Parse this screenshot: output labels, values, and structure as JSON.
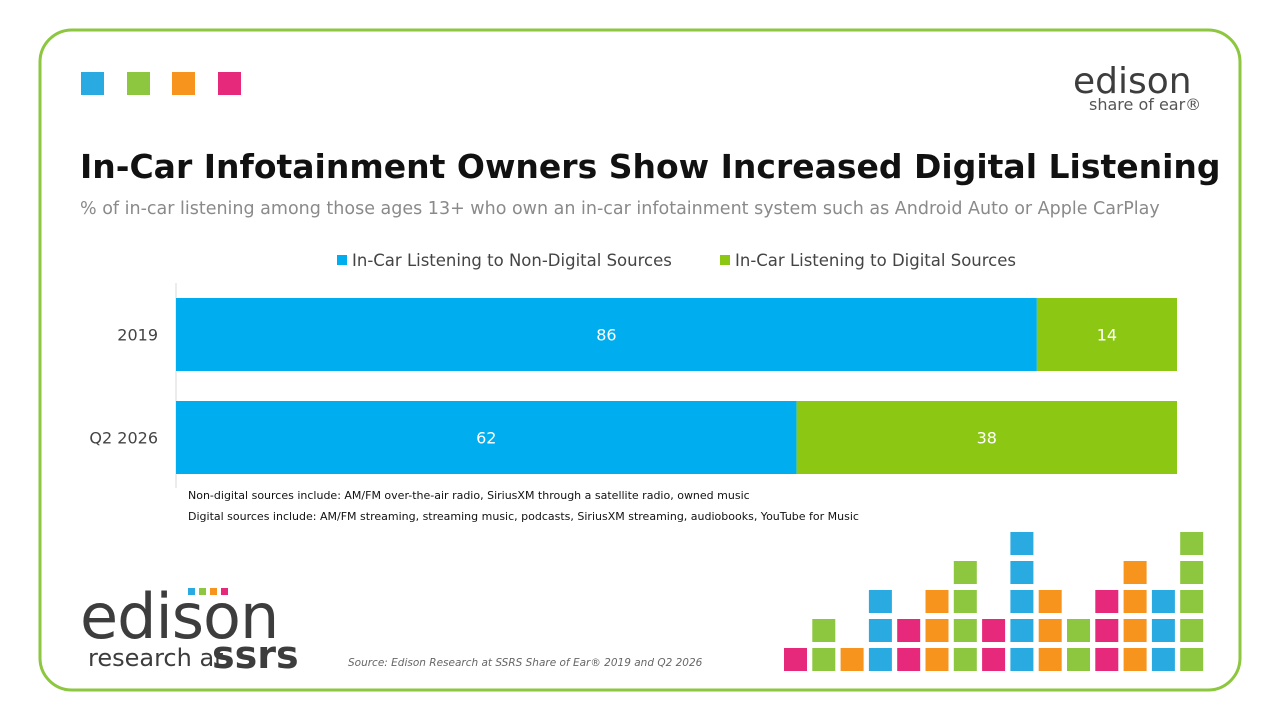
{
  "chart_data": {
    "type": "stacked-bar-horizontal",
    "title": "In-Car Infotainment Owners Show Increased Digital Listening",
    "subtitle": "% of in-car listening among those ages 13+ who own an in-car infotainment system such as Android Auto or Apple CarPlay",
    "categories": [
      "2019",
      "Q2 2026"
    ],
    "series": [
      {
        "name": "In-Car Listening to Non-Digital Sources",
        "color": "#00aeef",
        "values": [
          86,
          62
        ]
      },
      {
        "name": "In-Car Listening to Digital Sources",
        "color": "#8cc813",
        "values": [
          14,
          38
        ]
      }
    ],
    "xlim": [
      0,
      100
    ],
    "legend": "top"
  },
  "footnotes": [
    "Non-digital sources include: AM/FM over-the-air radio, SiriusXM through a satellite radio, owned music",
    "Digital sources include: AM/FM streaming, streaming music, podcasts, SiriusXM streaming, audiobooks, YouTube for Music"
  ],
  "source": "Source: Edison Research at SSRS Share of Ear® 2019 and Q2 2026",
  "logos": {
    "top": {
      "name": "edison",
      "tagline": "share of ear®"
    },
    "bottom": {
      "name": "edison",
      "tagline": "research at",
      "partner": "ssrs"
    }
  }
}
